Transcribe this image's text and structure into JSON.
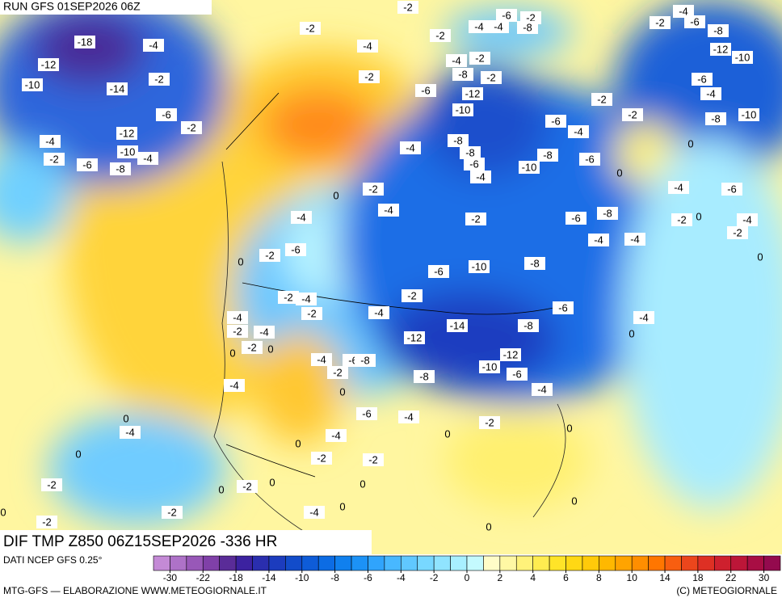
{
  "header": {
    "run": "RUN GFS 01SEP2026 06Z"
  },
  "contour_labels": [
    -18,
    -4,
    -2,
    -2,
    -2,
    -4,
    -12,
    -10,
    -14,
    -2,
    -6,
    -2,
    -12,
    -4,
    -10,
    -4,
    -2,
    -6,
    -8,
    -2,
    -6,
    -12,
    -10,
    -8,
    -4,
    -8,
    -6,
    -4,
    -8,
    -6,
    -10,
    -6,
    -4,
    -2,
    -2,
    0,
    0,
    -4,
    -6,
    -4,
    -2,
    0,
    0,
    -2,
    -8,
    -6,
    -4,
    -4,
    -8,
    -10,
    -6,
    0,
    -2,
    -4,
    -2,
    -4,
    -2,
    -6,
    0,
    -2,
    -2,
    -4,
    -2,
    -4,
    -6,
    -4,
    0,
    -8,
    -14,
    -12,
    -12,
    -10,
    -6,
    -8,
    -4,
    -4,
    -2,
    -4,
    -2,
    0,
    0,
    -4,
    -6,
    -8,
    -2,
    -4,
    0,
    -6,
    -4,
    -2,
    0,
    0,
    -4,
    0,
    0,
    -4,
    0,
    -2,
    -2,
    0,
    0,
    -2,
    0,
    -2,
    -2,
    -4,
    0,
    -2,
    0,
    0,
    0,
    -2,
    -6,
    -4,
    -8,
    -12,
    -10,
    -6,
    -4,
    -8,
    -10,
    -6,
    -2,
    -8,
    -4,
    -4,
    -4,
    -2,
    -8,
    -2
  ],
  "footer": {
    "title": "DIF TMP Z850 06Z15SEP2026 -336 HR",
    "source": "DATI NCEP GFS 0.25°",
    "credit": "MTG-GFS — ELABORAZIONE WWW.METEOGIORNALE.IT",
    "copyright": "(C) METEOGIORNALE"
  },
  "colorbar": {
    "ticks": [
      -30,
      -22,
      -18,
      -14,
      -10,
      -8,
      -6,
      -4,
      -2,
      0,
      2,
      4,
      6,
      8,
      10,
      14,
      18,
      22,
      30
    ],
    "colors": [
      "#c48ad6",
      "#ae72c8",
      "#9858b8",
      "#8040a8",
      "#5a2c98",
      "#3c22a0",
      "#2a2eae",
      "#1c3cbe",
      "#124cca",
      "#0e5cd8",
      "#0c6ce4",
      "#1080ee",
      "#1c92f6",
      "#30a4fc",
      "#48b8ff",
      "#60c8ff",
      "#78d8ff",
      "#90e4ff",
      "#a8f0ff",
      "#c4fafe",
      "#fffcc8",
      "#fff8a4",
      "#fff27a",
      "#ffec50",
      "#ffe428",
      "#ffd814",
      "#ffca0a",
      "#ffb800",
      "#ffa400",
      "#ff8e00",
      "#ff7600",
      "#f85e10",
      "#ec461c",
      "#de3024",
      "#ce202e",
      "#bc1638",
      "#a80e44",
      "#940a4e"
    ]
  }
}
